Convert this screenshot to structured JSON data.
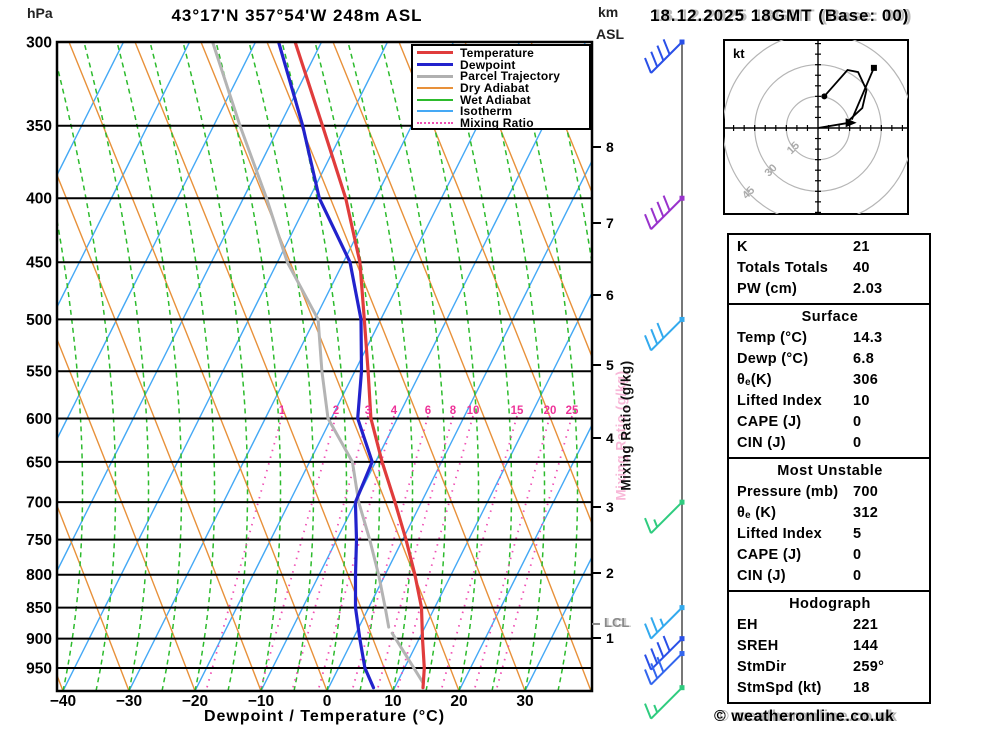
{
  "header": {
    "pressure_unit": "hPa",
    "title": "43°17'N 357°54'W 248m ASL",
    "km_unit": "km",
    "asl": "ASL",
    "datetime": "18.12.2025 18GMT (Base: 00)"
  },
  "axes": {
    "xlabel": "Dewpoint / Temperature (°C)",
    "pressure_ticks": [
      300,
      350,
      400,
      450,
      500,
      550,
      600,
      650,
      700,
      750,
      800,
      850,
      900,
      950
    ],
    "temp_ticks": [
      -40,
      -30,
      -20,
      -10,
      0,
      10,
      20,
      30
    ],
    "km_ticks": [
      1,
      2,
      3,
      4,
      5,
      6,
      7,
      8
    ],
    "mixing_axis_label": "Mixing Ratio (g/kg)",
    "mixing_ticks": [
      1,
      2,
      3,
      4,
      6,
      8,
      10,
      15,
      20,
      25
    ],
    "lcl_label": "LCL"
  },
  "legend": {
    "items": [
      {
        "label": "Temperature",
        "color": "#e03c3c",
        "style": "solid",
        "width": 3
      },
      {
        "label": "Dewpoint",
        "color": "#2222cc",
        "style": "solid",
        "width": 3
      },
      {
        "label": "Parcel Trajectory",
        "color": "#b0b0b0",
        "style": "solid",
        "width": 3
      },
      {
        "label": "Dry Adiabat",
        "color": "#e8913a",
        "style": "solid",
        "width": 2
      },
      {
        "label": "Wet Adiabat",
        "color": "#2dbb2d",
        "style": "solid",
        "width": 2
      },
      {
        "label": "Isotherm",
        "color": "#45a9f5",
        "style": "solid",
        "width": 2
      },
      {
        "label": "Mixing Ratio",
        "color": "#f050b4",
        "style": "dotted",
        "width": 2
      }
    ]
  },
  "chart_data": {
    "type": "skewt_sounding",
    "title": "43°17'N 357°54'W 248m ASL",
    "valid": "18.12.2025 18GMT (Base: 00)",
    "pressure_range_hpa": [
      300,
      1000
    ],
    "temp_axis_range_c": [
      -40,
      38
    ],
    "temperature_profile": [
      {
        "p": 300,
        "t": -54
      },
      {
        "p": 350,
        "t": -43.5
      },
      {
        "p": 400,
        "t": -34.5
      },
      {
        "p": 450,
        "t": -27.5
      },
      {
        "p": 500,
        "t": -22.5
      },
      {
        "p": 550,
        "t": -18
      },
      {
        "p": 600,
        "t": -14
      },
      {
        "p": 650,
        "t": -9
      },
      {
        "p": 700,
        "t": -4
      },
      {
        "p": 750,
        "t": 0.5
      },
      {
        "p": 800,
        "t": 4.5
      },
      {
        "p": 850,
        "t": 8
      },
      {
        "p": 900,
        "t": 10.5
      },
      {
        "p": 950,
        "t": 13
      },
      {
        "p": 985,
        "t": 14.3
      }
    ],
    "dewpoint_profile": [
      {
        "p": 300,
        "t": -56.5
      },
      {
        "p": 350,
        "t": -46.5
      },
      {
        "p": 400,
        "t": -38.5
      },
      {
        "p": 450,
        "t": -29
      },
      {
        "p": 500,
        "t": -23
      },
      {
        "p": 550,
        "t": -19
      },
      {
        "p": 600,
        "t": -16
      },
      {
        "p": 650,
        "t": -10.5
      },
      {
        "p": 700,
        "t": -10
      },
      {
        "p": 750,
        "t": -7
      },
      {
        "p": 800,
        "t": -4.5
      },
      {
        "p": 850,
        "t": -2
      },
      {
        "p": 900,
        "t": 1
      },
      {
        "p": 950,
        "t": 4
      },
      {
        "p": 985,
        "t": 6.8
      }
    ],
    "parcel_profile_upper": [
      {
        "p": 300,
        "t": -66.5
      },
      {
        "p": 350,
        "t": -56
      },
      {
        "p": 400,
        "t": -46.5
      },
      {
        "p": 450,
        "t": -38.5
      },
      {
        "p": 500,
        "t": -29.5
      },
      {
        "p": 550,
        "t": -25
      },
      {
        "p": 600,
        "t": -20.5
      },
      {
        "p": 650,
        "t": -13.5
      },
      {
        "p": 700,
        "t": -9.5
      },
      {
        "p": 750,
        "t": -5
      },
      {
        "p": 800,
        "t": -1
      },
      {
        "p": 850,
        "t": 2.5
      },
      {
        "p": 881,
        "t": 4.5
      }
    ],
    "parcel_profile_lower": [
      {
        "p": 891,
        "t": 5.5
      },
      {
        "p": 977,
        "t": 14
      }
    ],
    "lcl_pressure_hpa": 876,
    "wind_barbs": [
      {
        "p": 300,
        "color": "#2a50e8",
        "feathers": [
          1,
          1,
          1,
          1
        ]
      },
      {
        "p": 400,
        "color": "#9933cc",
        "feathers": [
          1,
          1,
          1,
          1
        ]
      },
      {
        "p": 500,
        "color": "#33aaee",
        "feathers": [
          1,
          1,
          1
        ]
      },
      {
        "p": 700,
        "color": "#2fcc7f",
        "feathers": [
          1,
          0.5
        ]
      },
      {
        "p": 850,
        "color": "#33aaee",
        "feathers": [
          1,
          1,
          0.5
        ]
      },
      {
        "p": 900,
        "color": "#2a50e8",
        "feathers": [
          1,
          1,
          1,
          1
        ]
      },
      {
        "p": 925,
        "color": "#3366ee",
        "feathers": [
          1,
          1,
          1
        ]
      },
      {
        "p": 985,
        "color": "#2fcc7f",
        "feathers": [
          1,
          0.5
        ]
      }
    ],
    "hodograph": {
      "units": "kt",
      "rings_kt": [
        15,
        30,
        45
      ],
      "trace_u_v_kt": [
        [
          3,
          15
        ],
        [
          14,
          27.5
        ],
        [
          19,
          26.5
        ],
        [
          23,
          18
        ],
        [
          21,
          9.5
        ],
        [
          14,
          3
        ]
      ],
      "branch_u_v_kt": [
        [
          26.5,
          28.5
        ],
        [
          16,
          4
        ]
      ],
      "storm_vector_u_v_kt": [
        [
          0,
          0
        ],
        [
          15,
          2.5
        ]
      ]
    }
  },
  "stats": {
    "sections": [
      {
        "title": "",
        "rows": [
          {
            "label": "K",
            "value": "21"
          },
          {
            "label": "Totals Totals",
            "value": "40"
          },
          {
            "label": "PW (cm)",
            "value": "2.03"
          }
        ]
      },
      {
        "title": "Surface",
        "rows": [
          {
            "label": "Temp (°C)",
            "value": "14.3"
          },
          {
            "label": "Dewp (°C)",
            "value": "6.8"
          },
          {
            "label": "θₑ(K)",
            "value": "306"
          },
          {
            "label": "Lifted Index",
            "value": "10"
          },
          {
            "label": "CAPE (J)",
            "value": "0"
          },
          {
            "label": "CIN (J)",
            "value": "0"
          }
        ]
      },
      {
        "title": "Most Unstable",
        "rows": [
          {
            "label": "Pressure (mb)",
            "value": "700"
          },
          {
            "label": "θₑ (K)",
            "value": "312"
          },
          {
            "label": "Lifted Index",
            "value": "5"
          },
          {
            "label": "CAPE (J)",
            "value": "0"
          },
          {
            "label": "CIN (J)",
            "value": "0"
          }
        ]
      },
      {
        "title": "Hodograph",
        "rows": [
          {
            "label": "EH",
            "value": "221"
          },
          {
            "label": "SREH",
            "value": "144"
          },
          {
            "label": "StmDir",
            "value": "259°"
          },
          {
            "label": "StmSpd (kt)",
            "value": "18"
          }
        ]
      }
    ]
  },
  "hodograph_panel": {
    "unit_label": "kt"
  },
  "watermark": "© weatheronline.co.uk"
}
